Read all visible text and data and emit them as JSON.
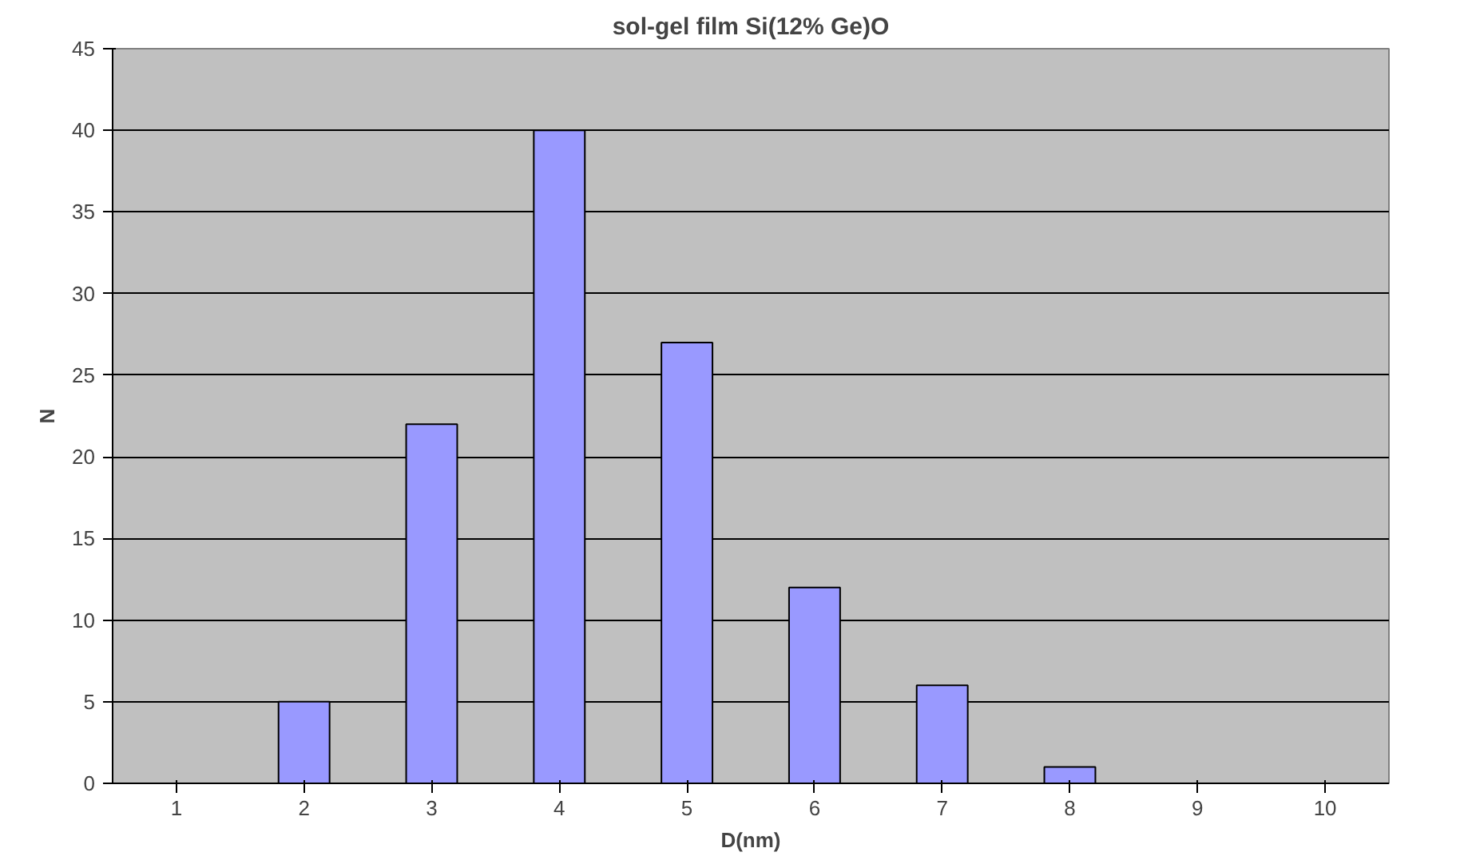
{
  "chart_data": {
    "type": "bar",
    "title": "sol-gel film Si(12% Ge)O",
    "xlabel": "D(nm)",
    "ylabel": "N",
    "categories": [
      "1",
      "2",
      "3",
      "4",
      "5",
      "6",
      "7",
      "8",
      "9",
      "10"
    ],
    "values": [
      0,
      5,
      22,
      40,
      27,
      12,
      6,
      1,
      0,
      0
    ],
    "color": "#9999ff",
    "ylim": [
      0,
      45
    ],
    "yticks": [
      0,
      5,
      10,
      15,
      20,
      25,
      30,
      35,
      40,
      45
    ],
    "grid": "y"
  }
}
